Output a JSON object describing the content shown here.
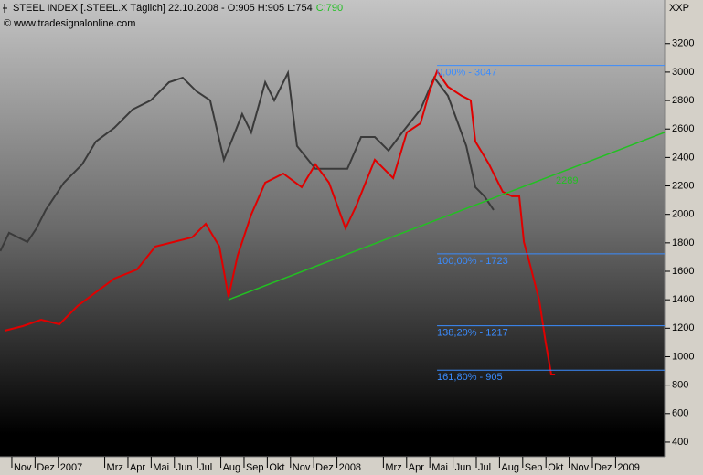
{
  "header": {
    "title": "STEEL INDEX [.STEEL.X  Täglich] 22.10.2008 - O:905 H:905 L:754",
    "close": "C:790",
    "copyright": "© www.tradesignalonline.com",
    "axis_unit": "XXP"
  },
  "chart_data": {
    "type": "line",
    "xlim": [
      0.49,
      29.11
    ],
    "xticks": [
      {
        "value": 1,
        "label": "Nov"
      },
      {
        "value": 2,
        "label": "Dez"
      },
      {
        "value": 3,
        "label": "2007"
      },
      {
        "value": 5,
        "label": "Mrz"
      },
      {
        "value": 6,
        "label": "Apr"
      },
      {
        "value": 7,
        "label": "Mai"
      },
      {
        "value": 8,
        "label": "Jun"
      },
      {
        "value": 9,
        "label": "Jul"
      },
      {
        "value": 10,
        "label": "Aug"
      },
      {
        "value": 11,
        "label": "Sep"
      },
      {
        "value": 12,
        "label": "Okt"
      },
      {
        "value": 13,
        "label": "Nov"
      },
      {
        "value": 14,
        "label": "Dez"
      },
      {
        "value": 15,
        "label": "2008"
      },
      {
        "value": 17,
        "label": "Mrz"
      },
      {
        "value": 18,
        "label": "Apr"
      },
      {
        "value": 19,
        "label": "Mai"
      },
      {
        "value": 20,
        "label": "Jun"
      },
      {
        "value": 21,
        "label": "Jul"
      },
      {
        "value": 22,
        "label": "Aug"
      },
      {
        "value": 23,
        "label": "Sep"
      },
      {
        "value": 24,
        "label": "Okt"
      },
      {
        "value": 25,
        "label": "Nov"
      },
      {
        "value": 26,
        "label": "Dez"
      },
      {
        "value": 27,
        "label": "2009"
      }
    ],
    "ylim": [
      297,
      3391
    ],
    "yticks": [
      400,
      600,
      800,
      1000,
      1200,
      1400,
      1600,
      1800,
      2000,
      2200,
      2400,
      2600,
      2800,
      3000,
      3200
    ],
    "series": [
      {
        "color": "#3a3a3a",
        "x": [
          0.5,
          0.88,
          1.67,
          2.06,
          2.46,
          3.24,
          4.03,
          4.62,
          5.41,
          6.2,
          6.98,
          7.77,
          8.36,
          8.95,
          9.54,
          10.13,
          10.53,
          10.92,
          11.31,
          11.91,
          12.3,
          12.89,
          13.28,
          14.07,
          14.86,
          15.45,
          16.04,
          16.63,
          17.22,
          17.81,
          18.6,
          19.19,
          19.78,
          20.57,
          20.96,
          21.35,
          21.75
        ],
        "values": [
          1742,
          1870,
          1806,
          1902,
          2031,
          2223,
          2352,
          2512,
          2608,
          2737,
          2801,
          2929,
          2961,
          2865,
          2801,
          2384,
          2544,
          2705,
          2576,
          2929,
          2801,
          2994,
          2480,
          2320,
          2320,
          2320,
          2544,
          2544,
          2448,
          2576,
          2737,
          2961,
          2833,
          2480,
          2191,
          2127,
          2031
        ]
      },
      {
        "color": "#e00000",
        "x": [
          0.69,
          1.47,
          2.26,
          3.05,
          3.83,
          4.62,
          5.41,
          6.39,
          7.18,
          7.97,
          8.76,
          9.35,
          9.94,
          10.33,
          10.72,
          11.31,
          11.91,
          12.69,
          13.48,
          14.07,
          14.66,
          15.37,
          15.84,
          16.63,
          17.42,
          18.01,
          18.6,
          18.99,
          19.31,
          19.78,
          20.37,
          20.76,
          20.96,
          21.55,
          22.14,
          22.54,
          22.85,
          23.05,
          23.32,
          23.72,
          23.99,
          24.23,
          24.39
        ],
        "values": [
          1183,
          1215,
          1260,
          1228,
          1356,
          1453,
          1549,
          1613,
          1774,
          1806,
          1838,
          1934,
          1774,
          1420,
          1710,
          1998,
          2223,
          2287,
          2191,
          2352,
          2223,
          1902,
          2063,
          2384,
          2255,
          2576,
          2640,
          2865,
          3006,
          2897,
          2833,
          2801,
          2512,
          2352,
          2159,
          2127,
          2127,
          1806,
          1645,
          1389,
          1100,
          875,
          875
        ]
      }
    ],
    "fib_start": 19.31,
    "fib_color": "#3a8cff",
    "levels": [
      {
        "value": 3047,
        "label": "0,00% - 3047"
      },
      {
        "value": 1723,
        "label": "100,00% - 1723"
      },
      {
        "value": 1217,
        "label": "138,20% - 1217"
      },
      {
        "value": 905,
        "label": "161,80% - 905"
      }
    ],
    "trendline": {
      "x": [
        10.33,
        29.11
      ],
      "values": [
        1400,
        2576
      ],
      "label": "2289",
      "color": "#22c022"
    }
  }
}
